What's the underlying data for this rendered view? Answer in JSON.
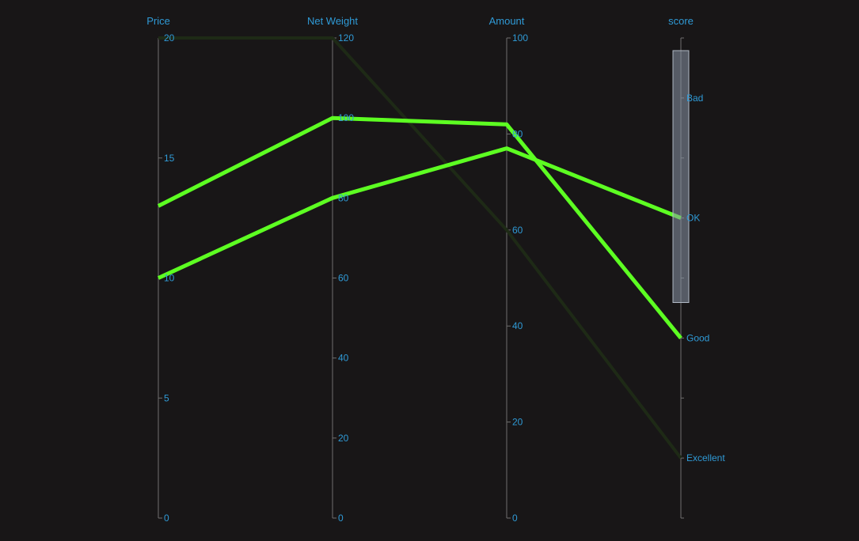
{
  "chart_data": {
    "type": "parallel",
    "axes": [
      {
        "name": "Price",
        "min": 0,
        "max": 20,
        "ticks": [
          0,
          5,
          10,
          15,
          20
        ]
      },
      {
        "name": "Net Weight",
        "min": 0,
        "max": 120,
        "ticks": [
          0,
          20,
          40,
          60,
          80,
          100,
          120
        ]
      },
      {
        "name": "Amount",
        "min": 0,
        "max": 100,
        "ticks": [
          0,
          20,
          40,
          60,
          80,
          100
        ]
      },
      {
        "name": "score",
        "categories": [
          "Excellent",
          "Good",
          "OK",
          "Bad"
        ]
      }
    ],
    "brush": {
      "axis": "score",
      "range": [
        "OK",
        "Bad"
      ]
    },
    "series": [
      {
        "values": [
          13,
          100,
          82,
          "Good"
        ],
        "active": true
      },
      {
        "values": [
          10,
          80,
          77,
          "OK"
        ],
        "active": true
      },
      {
        "values": [
          20,
          120,
          60,
          "Excellent"
        ],
        "active": false
      }
    ],
    "colors": {
      "active_line": "#5dff22",
      "inactive_line": "#1e2a16",
      "axis_label": "#2f9ad6",
      "axis_line": "#6f6f6f",
      "brush_fill": "#8a95a5",
      "background": "#181617"
    }
  }
}
